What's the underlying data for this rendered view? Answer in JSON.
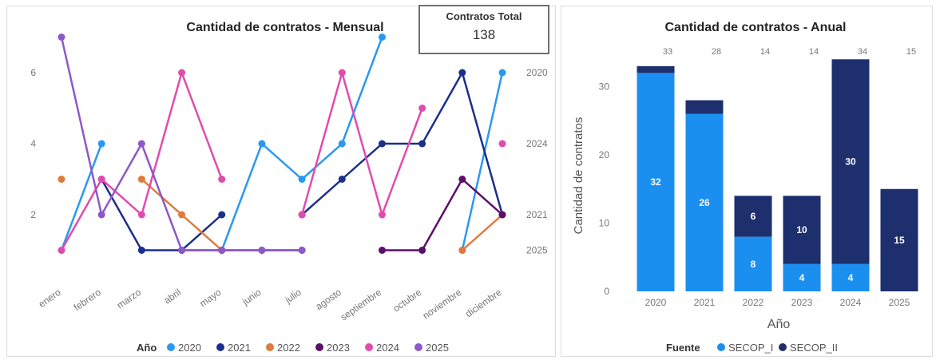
{
  "colors": {
    "years": {
      "2020": "#2b98f0",
      "2021": "#1b2f8c",
      "2022": "#e07a3c",
      "2023": "#5c0f6a",
      "2024": "#e04cae",
      "2025": "#8e58c8"
    },
    "fuente": {
      "SECOP_I": "#1a8ff0",
      "SECOP_II": "#1e2f6e"
    },
    "axis_text": "#777777",
    "title_text": "#252423"
  },
  "card": {
    "title": "Contratos Total",
    "value": "138"
  },
  "chart_data": [
    {
      "type": "line",
      "title": "Cantidad de contratos - Mensual",
      "xlabel": "",
      "ylabel": "",
      "categories": [
        "enero",
        "febrero",
        "marzo",
        "abril",
        "mayo",
        "junio",
        "julio",
        "agosto",
        "septiembre",
        "octubre",
        "noviembre",
        "diciembre"
      ],
      "yticks": [
        "2",
        "4",
        "6"
      ],
      "ylim": [
        0,
        7.4
      ],
      "grid": false,
      "legend_title": "Año",
      "legend_position": "bottom",
      "series": [
        {
          "name": "2020",
          "values": [
            1,
            4,
            null,
            null,
            1,
            4,
            3,
            4,
            7,
            null,
            1,
            6
          ]
        },
        {
          "name": "2021",
          "values": [
            null,
            3,
            1,
            1,
            2,
            null,
            2,
            3,
            4,
            4,
            6,
            2
          ]
        },
        {
          "name": "2022",
          "values": [
            3,
            null,
            3,
            2,
            1,
            null,
            null,
            null,
            null,
            null,
            1,
            2
          ]
        },
        {
          "name": "2023",
          "values": [
            null,
            null,
            null,
            1,
            1,
            1,
            1,
            null,
            1,
            1,
            3,
            2
          ]
        },
        {
          "name": "2024",
          "values": [
            1,
            3,
            2,
            6,
            3,
            null,
            2,
            6,
            2,
            5,
            null,
            4
          ]
        },
        {
          "name": "2025",
          "values": [
            7,
            2,
            4,
            1,
            1,
            1,
            1,
            null,
            null,
            null,
            null,
            null
          ]
        }
      ],
      "end_labels": [
        {
          "series": "2020",
          "label": "2020",
          "value": 6
        },
        {
          "series": "2024",
          "label": "2024",
          "value": 4
        },
        {
          "series": "2021",
          "label": "2021",
          "value": 2
        },
        {
          "series": "2025",
          "label": "2025",
          "value": 1
        }
      ]
    },
    {
      "type": "bar",
      "stacked": true,
      "title": "Cantidad de contratos - Anual",
      "xlabel": "Año",
      "ylabel": "Cantidad de contratos",
      "categories": [
        "2020",
        "2021",
        "2022",
        "2023",
        "2024",
        "2025"
      ],
      "ylim": [
        0,
        34
      ],
      "yticks": [
        "0",
        "10",
        "20",
        "30"
      ],
      "totals": [
        "33",
        "28",
        "14",
        "14",
        "34",
        "15"
      ],
      "legend_title": "Fuente",
      "legend_position": "bottom",
      "series": [
        {
          "name": "SECOP_I",
          "values": [
            32,
            26,
            8,
            4,
            4,
            0
          ],
          "labels": [
            "32",
            "26",
            "8",
            "4",
            "4",
            ""
          ]
        },
        {
          "name": "SECOP_II",
          "values": [
            1,
            2,
            6,
            10,
            30,
            15
          ],
          "labels": [
            "",
            "",
            "6",
            "10",
            "30",
            "15"
          ]
        }
      ]
    }
  ]
}
